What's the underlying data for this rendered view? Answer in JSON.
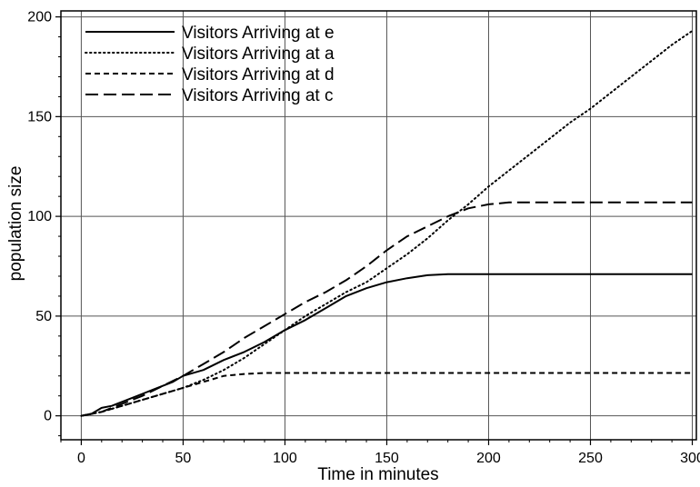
{
  "chart_data": {
    "type": "line",
    "title": "",
    "xlabel": "Time in minutes",
    "ylabel": "population size",
    "xlim": [
      -10,
      302
    ],
    "ylim": [
      -12,
      203
    ],
    "x_ticks": [
      0,
      50,
      100,
      150,
      200,
      250,
      300
    ],
    "y_ticks": [
      0,
      50,
      100,
      150,
      200
    ],
    "x_tick_labels": [
      "0",
      "50",
      "100",
      "150",
      "200",
      "250",
      "300"
    ],
    "y_tick_labels": [
      "0",
      "50",
      "100",
      "150",
      "200"
    ],
    "grid": true,
    "legend_position": "top-left",
    "series": [
      {
        "name": "Visitors Arriving at e",
        "style": "solid",
        "x": [
          0,
          5,
          10,
          15,
          20,
          25,
          30,
          35,
          40,
          45,
          50,
          60,
          70,
          80,
          90,
          100,
          110,
          120,
          130,
          140,
          150,
          160,
          170,
          180,
          190,
          200,
          250,
          300
        ],
        "y": [
          0,
          1,
          4,
          5,
          7,
          9,
          11,
          13,
          15,
          17,
          20,
          23,
          28,
          32,
          37,
          43,
          48,
          54,
          60,
          64,
          67,
          69,
          70.5,
          71,
          71,
          71,
          71,
          71
        ]
      },
      {
        "name": "Visitors Arriving at a",
        "style": "dotted",
        "x": [
          0,
          10,
          20,
          30,
          40,
          50,
          60,
          70,
          80,
          90,
          100,
          110,
          120,
          130,
          140,
          150,
          160,
          170,
          180,
          190,
          200,
          210,
          220,
          230,
          240,
          250,
          260,
          270,
          280,
          290,
          300
        ],
        "y": [
          0,
          2,
          5,
          8,
          11,
          14,
          18,
          23,
          29,
          36,
          43,
          50,
          56,
          62,
          67,
          74,
          81,
          89,
          98,
          106,
          115,
          123,
          131,
          139,
          147,
          154,
          162,
          170,
          178,
          186,
          193
        ]
      },
      {
        "name": "Visitors Arriving at d",
        "style": "short-dash",
        "x": [
          0,
          10,
          20,
          30,
          40,
          50,
          60,
          70,
          80,
          90,
          100,
          150,
          200,
          250,
          300
        ],
        "y": [
          0,
          2,
          5,
          8,
          11,
          14,
          17,
          20,
          21,
          21.5,
          21.5,
          21.5,
          21.5,
          21.5,
          21.5
        ]
      },
      {
        "name": "Visitors Arriving at c",
        "style": "long-dash",
        "x": [
          0,
          10,
          20,
          30,
          40,
          50,
          60,
          70,
          80,
          90,
          100,
          110,
          120,
          130,
          140,
          150,
          160,
          170,
          180,
          190,
          200,
          210,
          250,
          300
        ],
        "y": [
          0,
          2,
          6,
          10,
          15,
          20,
          26,
          32,
          39,
          45,
          51,
          57,
          62,
          68,
          75,
          83,
          90,
          95,
          100,
          104,
          106,
          107,
          107,
          107
        ]
      }
    ]
  }
}
